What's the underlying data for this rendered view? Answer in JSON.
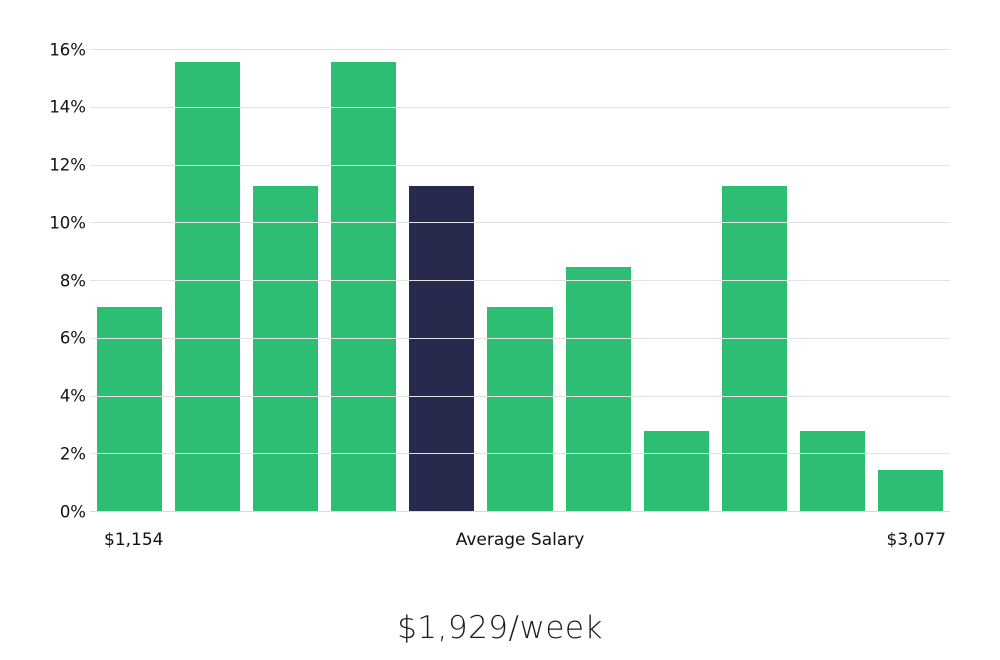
{
  "chart_data": {
    "type": "bar",
    "title": "$1,929/week",
    "values": [
      7.1,
      15.6,
      11.3,
      15.6,
      11.3,
      7.1,
      8.5,
      2.8,
      11.3,
      2.8,
      1.45
    ],
    "highlight_index": 4,
    "ylim": [
      0,
      16
    ],
    "yticks": [
      0,
      2,
      4,
      6,
      8,
      10,
      12,
      14,
      16
    ],
    "ytick_suffix": "%",
    "grid": true,
    "legend": "none",
    "bar_color": "#2dbd73",
    "highlight_color": "#272a4d",
    "xlabels": {
      "left": "$1,154",
      "center": "Average Salary",
      "right": "$3,077"
    }
  },
  "footer": {
    "title": "$1,929/week"
  }
}
